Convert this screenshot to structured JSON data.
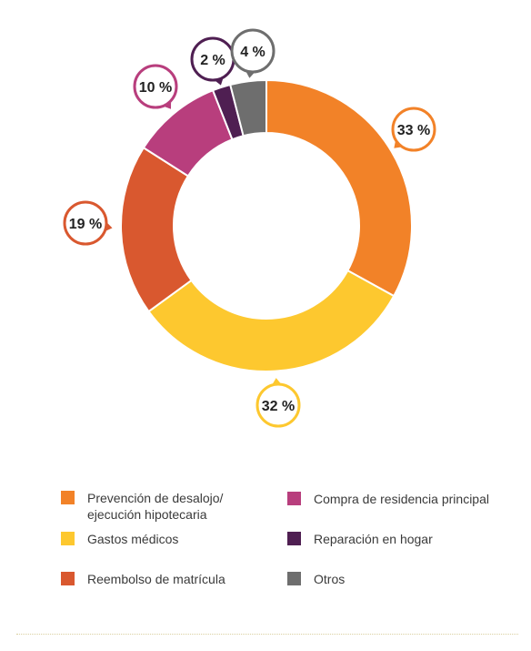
{
  "chart_data": {
    "type": "pie",
    "variant": "donut",
    "categories": [
      "Prevención de desalojo/ ejecución hipotecaria",
      "Gastos médicos",
      "Reembolso de matrícula",
      "Compra de residencia principal",
      "Reparación en hogar",
      "Otros"
    ],
    "values": [
      33,
      32,
      19,
      10,
      2,
      4
    ],
    "labels": [
      "33 %",
      "32 %",
      "19 %",
      "10 %",
      "2 %",
      "4 %"
    ],
    "colors": [
      "#F28228",
      "#FDC82F",
      "#D9582F",
      "#B83E7D",
      "#4F1F52",
      "#6E6E6E"
    ],
    "legend_placement": "bottom"
  },
  "legend": {
    "items": [
      {
        "label": "Prevención de desalojo/ ejecución hipotecaria",
        "color": "#F28228"
      },
      {
        "label": "Gastos médicos",
        "color": "#FDC82F"
      },
      {
        "label": "Reembolso de matrícula",
        "color": "#D9582F"
      },
      {
        "label": "Compra de residencia principal",
        "color": "#B83E7D"
      },
      {
        "label": "Reparación en hogar",
        "color": "#4F1F52"
      },
      {
        "label": "Otros",
        "color": "#6E6E6E"
      }
    ]
  }
}
